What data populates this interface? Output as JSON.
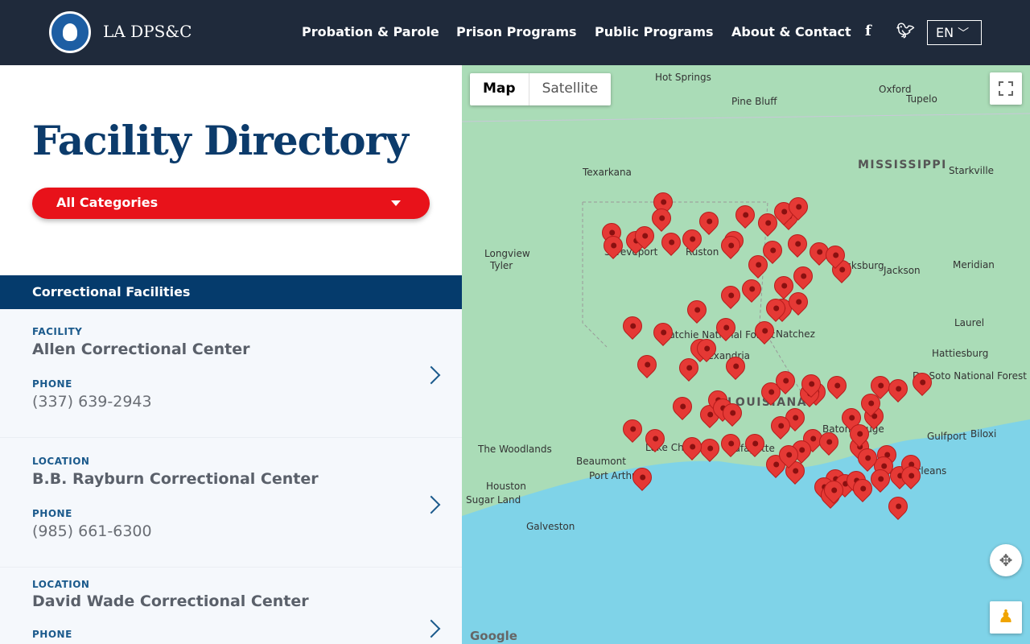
{
  "header": {
    "brand": "LA DPS&C",
    "nav": [
      "Probation & Parole",
      "Prison Programs",
      "Public Programs",
      "About & Contact"
    ],
    "social": [
      "facebook-icon",
      "twitter-icon"
    ],
    "language": "EN"
  },
  "sidebar": {
    "title": "Facility Directory",
    "category_select": "All Categories",
    "section": "Correctional Facilities",
    "items": [
      {
        "label": "FACILITY",
        "name": "Allen Correctional Center",
        "phone_label": "PHONE",
        "phone": "(337) 639-2943"
      },
      {
        "label": "LOCATION",
        "name": "B.B. Rayburn Correctional Center",
        "phone_label": "PHONE",
        "phone": "(985) 661-6300"
      },
      {
        "label": "LOCATION",
        "name": "David Wade Correctional Center",
        "phone_label": "PHONE",
        "phone": ""
      }
    ]
  },
  "map": {
    "types": [
      "Map",
      "Satellite"
    ],
    "selected": "Map",
    "attribution": "Google",
    "colors": {
      "land": "#aadcb7",
      "water": "#7fd3e8",
      "pin": "#e53935"
    },
    "labels": [
      "Hot Springs",
      "Pine Bluff",
      "Oxford",
      "Tupelo",
      "Texarkana",
      "Starkville",
      "Longview",
      "Tyler",
      "Shreveport",
      "Ruston",
      "Vicksburg",
      "Jackson",
      "Meridian",
      "Natchez",
      "Laurel",
      "Hattiesburg",
      "Alexandria",
      "Lafayette",
      "Lake Charles",
      "Beaumont",
      "Port Arthur",
      "Houston",
      "Sugar Land",
      "Galveston",
      "The Woodlands",
      "Baton Rouge",
      "New Orleans",
      "Gulfport",
      "Biloxi",
      "De Soto National Forest",
      "Kisatchie National Forest"
    ],
    "state_labels": [
      "MISSISSIPPI",
      "LOUISIANA"
    ]
  }
}
